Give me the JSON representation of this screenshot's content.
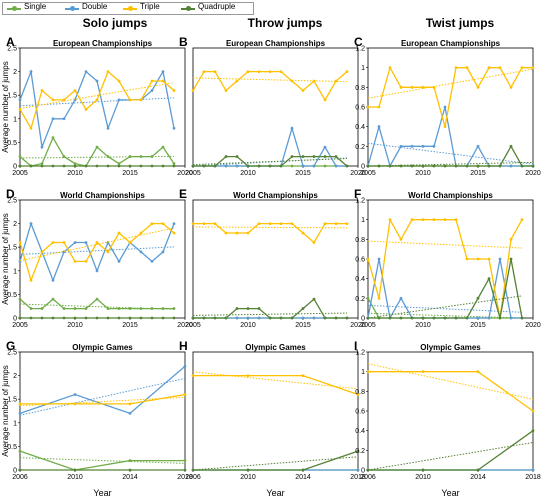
{
  "legend": [
    {
      "name": "Single",
      "color": "#70ad47"
    },
    {
      "name": "Double",
      "color": "#5b9bd5"
    },
    {
      "name": "Triple",
      "color": "#ffc000"
    },
    {
      "name": "Quadruple",
      "color": "#548235"
    }
  ],
  "columns": [
    "Solo jumps",
    "Throw jumps",
    "Twist jumps"
  ],
  "ylabel": "Average number of jumps",
  "xlabel": "Year",
  "chart_data": [
    {
      "type": "line",
      "panel": "A",
      "title": "European Championships",
      "xlim": [
        2005,
        2020
      ],
      "ylim": [
        0,
        2.5
      ],
      "yticks": [
        0,
        0.5,
        1,
        1.5,
        2,
        2.5
      ],
      "xticks": [
        2005,
        2010,
        2015,
        2020
      ],
      "x": [
        2005,
        2006,
        2007,
        2008,
        2009,
        2010,
        2011,
        2012,
        2013,
        2014,
        2015,
        2016,
        2017,
        2018,
        2019
      ],
      "series": [
        {
          "name": "Single",
          "values": [
            0.2,
            0,
            0.05,
            0.6,
            0.2,
            0.05,
            0,
            0.4,
            0.2,
            0.05,
            0.2,
            0.2,
            0.2,
            0.4,
            0.05
          ]
        },
        {
          "name": "Double",
          "values": [
            1.4,
            2.0,
            0.4,
            1.0,
            1.0,
            1.4,
            2.0,
            1.8,
            0.8,
            1.4,
            1.4,
            1.4,
            1.6,
            2.0,
            0.8
          ]
        },
        {
          "name": "Triple",
          "values": [
            1.2,
            0.8,
            1.6,
            1.4,
            1.4,
            1.6,
            1.2,
            1.4,
            2.0,
            1.8,
            1.4,
            1.4,
            1.8,
            1.8,
            1.6
          ]
        },
        {
          "name": "Quadruple",
          "values": [
            0,
            0,
            0,
            0,
            0,
            0,
            0,
            0,
            0,
            0,
            0,
            0,
            0,
            0,
            0
          ]
        }
      ]
    },
    {
      "type": "line",
      "panel": "B",
      "title": "European Championships",
      "xlim": [
        2005,
        2020
      ],
      "ylim": [
        0,
        2.5
      ],
      "xticks": [
        2005,
        2010,
        2015,
        2020
      ],
      "x": [
        2005,
        2006,
        2007,
        2008,
        2009,
        2010,
        2011,
        2012,
        2013,
        2014,
        2015,
        2016,
        2017,
        2018,
        2019
      ],
      "series": [
        {
          "name": "Single",
          "values": [
            0,
            0,
            0,
            0,
            0,
            0,
            0,
            0,
            0,
            0,
            0,
            0,
            0,
            0,
            0
          ]
        },
        {
          "name": "Double",
          "values": [
            0,
            0,
            0,
            0,
            0,
            0,
            0,
            0,
            0,
            0.8,
            0,
            0,
            0.4,
            0,
            0
          ]
        },
        {
          "name": "Triple",
          "values": [
            1.6,
            2.0,
            2.0,
            1.6,
            1.8,
            2.0,
            2.0,
            2.0,
            2.0,
            1.8,
            1.6,
            1.8,
            1.4,
            1.8,
            2.0
          ]
        },
        {
          "name": "Quadruple",
          "values": [
            0,
            0,
            0,
            0.2,
            0.2,
            0,
            0,
            0,
            0,
            0.2,
            0.2,
            0.2,
            0.2,
            0.2,
            0
          ]
        }
      ]
    },
    {
      "type": "line",
      "panel": "C",
      "title": "European Championships",
      "xlim": [
        2005,
        2020
      ],
      "ylim": [
        0,
        1.2
      ],
      "yticks": [
        0,
        0.2,
        0.4,
        0.6,
        0.8,
        1,
        1.2
      ],
      "xticks": [
        2005,
        2010,
        2015,
        2020
      ],
      "x": [
        2005,
        2006,
        2007,
        2008,
        2009,
        2010,
        2011,
        2012,
        2013,
        2014,
        2015,
        2016,
        2017,
        2018,
        2019,
        2020
      ],
      "series": [
        {
          "name": "Single",
          "values": [
            0,
            0,
            0,
            0,
            0,
            0,
            0,
            0,
            0,
            0,
            0,
            0,
            0,
            0,
            0,
            0
          ]
        },
        {
          "name": "Double",
          "values": [
            0,
            0.4,
            0,
            0.2,
            0.2,
            0.2,
            0.2,
            0.6,
            0,
            0,
            0.2,
            0,
            0,
            0,
            0,
            0
          ]
        },
        {
          "name": "Triple",
          "values": [
            0.6,
            0.6,
            1.0,
            0.8,
            0.8,
            0.8,
            0.8,
            0.4,
            1.0,
            1.0,
            0.8,
            1.0,
            1.0,
            0.8,
            1.0,
            1.0
          ]
        },
        {
          "name": "Quadruple",
          "values": [
            0,
            0,
            0,
            0,
            0,
            0,
            0,
            0,
            0,
            0,
            0,
            0,
            0,
            0.2,
            0,
            0
          ]
        }
      ]
    },
    {
      "type": "line",
      "panel": "D",
      "title": "World Championships",
      "xlim": [
        2005,
        2020
      ],
      "ylim": [
        0,
        2.5
      ],
      "yticks": [
        0,
        0.5,
        1,
        1.5,
        2,
        2.5
      ],
      "xticks": [
        2005,
        2010,
        2015,
        2020
      ],
      "x": [
        2005,
        2006,
        2007,
        2008,
        2009,
        2010,
        2011,
        2012,
        2013,
        2014,
        2015,
        2016,
        2017,
        2018,
        2019
      ],
      "series": [
        {
          "name": "Single",
          "values": [
            0.4,
            0.2,
            0.2,
            0.4,
            0.2,
            0.2,
            0.2,
            0.4,
            0.2,
            0.2,
            0.2,
            0.2,
            0.2,
            0.2,
            0.2
          ]
        },
        {
          "name": "Double",
          "values": [
            1.2,
            2.0,
            1.4,
            0.8,
            1.4,
            1.6,
            1.6,
            1.0,
            1.6,
            1.2,
            1.6,
            1.4,
            1.2,
            1.4,
            2.0
          ]
        },
        {
          "name": "Triple",
          "values": [
            1.6,
            0.8,
            1.4,
            1.6,
            1.6,
            1.2,
            1.2,
            1.6,
            1.4,
            1.8,
            1.6,
            1.8,
            2.0,
            2.0,
            1.8
          ]
        },
        {
          "name": "Quadruple",
          "values": [
            0,
            0,
            0,
            0,
            0,
            0,
            0,
            0,
            0,
            0,
            0,
            0,
            0,
            0,
            0
          ]
        }
      ]
    },
    {
      "type": "line",
      "panel": "E",
      "title": "World Championships",
      "xlim": [
        2005,
        2020
      ],
      "ylim": [
        0,
        2.5
      ],
      "xticks": [
        2005,
        2010,
        2015,
        2020
      ],
      "x": [
        2005,
        2006,
        2007,
        2008,
        2009,
        2010,
        2011,
        2012,
        2013,
        2014,
        2015,
        2016,
        2017,
        2018,
        2019
      ],
      "series": [
        {
          "name": "Single",
          "values": [
            0,
            0,
            0,
            0,
            0,
            0,
            0,
            0,
            0,
            0,
            0,
            0,
            0,
            0,
            0
          ]
        },
        {
          "name": "Double",
          "values": [
            0,
            0,
            0,
            0,
            0,
            0,
            0,
            0,
            0,
            0,
            0,
            0,
            0,
            0,
            0
          ]
        },
        {
          "name": "Triple",
          "values": [
            2.0,
            2.0,
            2.0,
            1.8,
            1.8,
            1.8,
            2.0,
            2.0,
            2.0,
            2.0,
            1.8,
            1.6,
            2.0,
            2.0,
            2.0
          ]
        },
        {
          "name": "Quadruple",
          "values": [
            0,
            0,
            0,
            0,
            0.2,
            0.2,
            0.2,
            0,
            0,
            0,
            0.2,
            0.4,
            0,
            0,
            0
          ]
        }
      ]
    },
    {
      "type": "line",
      "panel": "F",
      "title": "World Championships",
      "xlim": [
        2005,
        2020
      ],
      "ylim": [
        0,
        1.2
      ],
      "yticks": [
        0,
        0.2,
        0.4,
        0.6,
        0.8,
        1,
        1.2
      ],
      "xticks": [
        2005,
        2010,
        2015,
        2020
      ],
      "x": [
        2005,
        2006,
        2007,
        2008,
        2009,
        2010,
        2011,
        2012,
        2013,
        2014,
        2015,
        2016,
        2017,
        2018,
        2019
      ],
      "series": [
        {
          "name": "Single",
          "values": [
            0.2,
            0,
            0,
            0,
            0,
            0,
            0,
            0,
            0,
            0,
            0,
            0,
            0,
            0,
            0
          ]
        },
        {
          "name": "Double",
          "values": [
            0,
            0.6,
            0,
            0.2,
            0,
            0,
            0,
            0,
            0,
            0,
            0,
            0,
            0.6,
            0,
            0
          ]
        },
        {
          "name": "Triple",
          "values": [
            0.6,
            0.2,
            1.0,
            0.8,
            1.0,
            1.0,
            1.0,
            1.0,
            1.0,
            0.6,
            0.6,
            0.6,
            0,
            0.8,
            1.0
          ]
        },
        {
          "name": "Quadruple",
          "values": [
            0,
            0,
            0,
            0,
            0,
            0,
            0,
            0,
            0,
            0,
            0.2,
            0.4,
            0,
            0.6,
            0
          ]
        }
      ]
    },
    {
      "type": "line",
      "panel": "G",
      "title": "Olympic Games",
      "xlim": [
        2006,
        2018
      ],
      "ylim": [
        0,
        2.5
      ],
      "yticks": [
        0,
        0.5,
        1,
        1.5,
        2,
        2.5
      ],
      "xticks": [
        2006,
        2010,
        2014,
        2018
      ],
      "x": [
        2006,
        2010,
        2014,
        2018
      ],
      "series": [
        {
          "name": "Single",
          "values": [
            0.4,
            0,
            0.2,
            0.2
          ]
        },
        {
          "name": "Double",
          "values": [
            1.2,
            1.6,
            1.2,
            2.2
          ]
        },
        {
          "name": "Triple",
          "values": [
            1.4,
            1.4,
            1.4,
            1.6
          ]
        },
        {
          "name": "Quadruple",
          "values": [
            0,
            0,
            0,
            0
          ]
        }
      ]
    },
    {
      "type": "line",
      "panel": "H",
      "title": "Olympic Games",
      "xlim": [
        2006,
        2018
      ],
      "ylim": [
        0,
        2.5
      ],
      "xticks": [
        2006,
        2010,
        2014,
        2018
      ],
      "x": [
        2006,
        2010,
        2014,
        2018
      ],
      "series": [
        {
          "name": "Single",
          "values": [
            0,
            0,
            0,
            0
          ]
        },
        {
          "name": "Double",
          "values": [
            0,
            0,
            0,
            0
          ]
        },
        {
          "name": "Triple",
          "values": [
            2.0,
            2.0,
            2.0,
            1.6
          ]
        },
        {
          "name": "Quadruple",
          "values": [
            0,
            0,
            0,
            0.4
          ]
        }
      ]
    },
    {
      "type": "line",
      "panel": "I",
      "title": "Olympic Games",
      "xlim": [
        2006,
        2018
      ],
      "ylim": [
        0,
        1.2
      ],
      "yticks": [
        0,
        0.2,
        0.4,
        0.6,
        0.8,
        1,
        1.2
      ],
      "xticks": [
        2006,
        2010,
        2014,
        2018
      ],
      "x": [
        2006,
        2010,
        2014,
        2018
      ],
      "series": [
        {
          "name": "Single",
          "values": [
            0,
            0,
            0,
            0
          ]
        },
        {
          "name": "Double",
          "values": [
            0,
            0,
            0,
            0
          ]
        },
        {
          "name": "Triple",
          "values": [
            1.0,
            1.0,
            1.0,
            0.6
          ]
        },
        {
          "name": "Quadruple",
          "values": [
            0,
            0,
            0,
            0.4
          ]
        }
      ]
    }
  ]
}
